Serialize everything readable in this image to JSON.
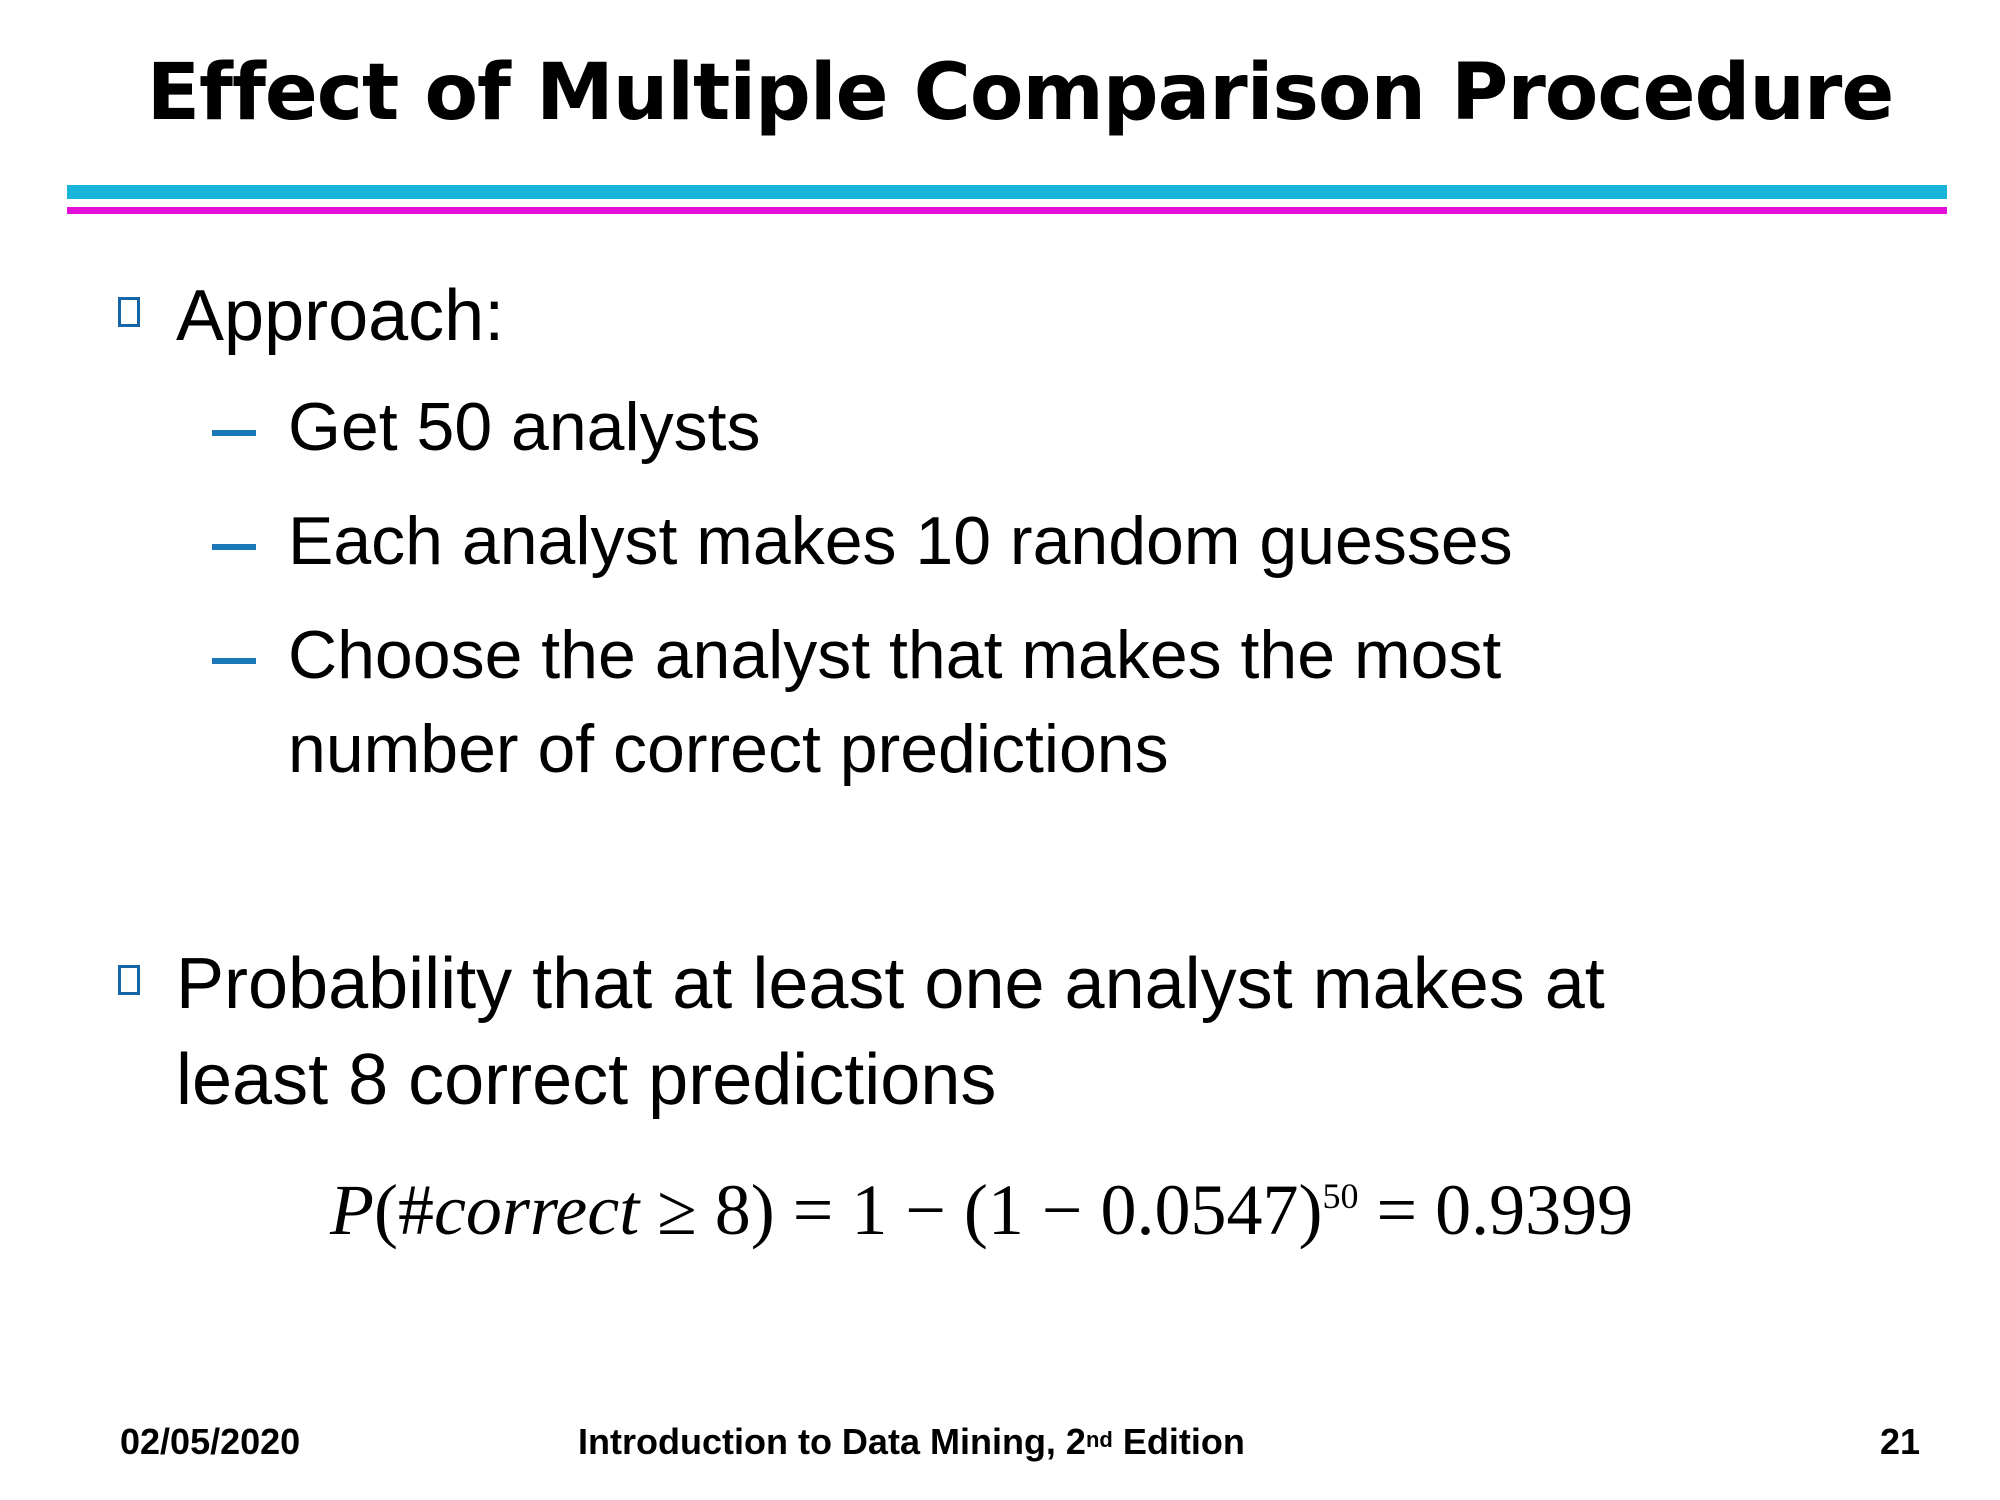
{
  "slide": {
    "title": "Effect of Multiple Comparison Procedure",
    "bullets": [
      {
        "text": "Approach:",
        "subitems": [
          "Get 50 analysts",
          "Each analyst makes 10 random guesses",
          "Choose the analyst that makes the most",
          "number of correct predictions"
        ]
      },
      {
        "text_line1": "Probability that at least one analyst makes at",
        "text_line2": "least 8 correct predictions"
      }
    ],
    "formula": {
      "lhs_p": "P",
      "lhs_open": "(#",
      "lhs_var": "correct",
      "lhs_rest": " ≥ 8) = 1 − (1 − 0.0547)",
      "exponent": "50",
      "result": " = 0.9399"
    }
  },
  "footer": {
    "date": "02/05/2020",
    "book_prefix": "Introduction to Data Mining, 2",
    "book_sup": "nd",
    "book_suffix": " Edition",
    "page": "21"
  },
  "colors": {
    "rule_top": "#19b5d8",
    "rule_bottom": "#e10fd7",
    "dash": "#1a78b8",
    "bullet_box": "#1565a8"
  }
}
